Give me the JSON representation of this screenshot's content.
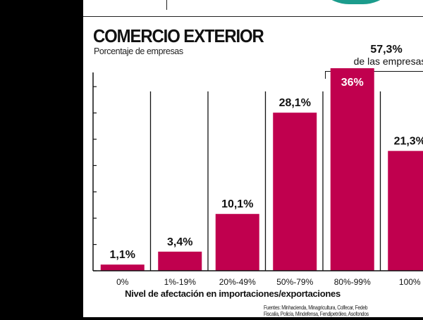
{
  "header": {
    "title": "COMERCIO EXTERIOR",
    "subtitle": "Porcentaje de empresas"
  },
  "annotation": {
    "value": "57,3%",
    "text": "de las empresas"
  },
  "source": {
    "line1": "Fuentes: Minhacienda, Minagricultura, Colfecar, Fedeb",
    "line2": "Fiscalía, Policía, Mindefensa, Fendipetróleo, Asofondos"
  },
  "colors": {
    "bar": "#c0004e",
    "accent_teal": "#1b9c8c"
  },
  "chart_data": {
    "type": "bar",
    "title": "COMERCIO EXTERIOR",
    "subtitle": "Porcentaje de empresas",
    "xlabel": "Nivel de afectación en importaciones/exportaciones",
    "ylabel": "",
    "categories": [
      "0%",
      "1%-19%",
      "20%-49%",
      "50%-79%",
      "80%-99%",
      "100%"
    ],
    "values": [
      1.1,
      3.4,
      10.1,
      28.1,
      36,
      21.3
    ],
    "value_labels": [
      "1,1%",
      "3,4%",
      "10,1%",
      "28,1%",
      "36%",
      "21,3%"
    ],
    "ylim": [
      0,
      40
    ],
    "grid": false,
    "legend": "none"
  }
}
